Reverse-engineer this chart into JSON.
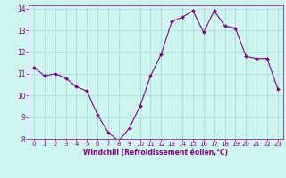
{
  "x": [
    0,
    1,
    2,
    3,
    4,
    5,
    6,
    7,
    8,
    9,
    10,
    11,
    12,
    13,
    14,
    15,
    16,
    17,
    18,
    19,
    20,
    21,
    22,
    23
  ],
  "y": [
    11.3,
    10.9,
    11.0,
    10.8,
    10.4,
    10.2,
    9.1,
    8.3,
    7.9,
    8.5,
    9.5,
    10.9,
    11.9,
    13.4,
    13.6,
    13.9,
    12.9,
    13.9,
    13.2,
    13.1,
    11.8,
    11.7,
    11.7,
    10.3
  ],
  "line_color": "#800080",
  "marker_color": "#800080",
  "bg_color": "#cff5f0",
  "grid_color": "#aaddd8",
  "xlabel": "Windchill (Refroidissement éolien,°C)",
  "xlabel_color": "#800080",
  "tick_color": "#800080",
  "ylim": [
    8,
    14
  ],
  "xlim": [
    -0.5,
    23.5
  ],
  "yticks": [
    8,
    9,
    10,
    11,
    12,
    13,
    14
  ],
  "xticks": [
    0,
    1,
    2,
    3,
    4,
    5,
    6,
    7,
    8,
    9,
    10,
    11,
    12,
    13,
    14,
    15,
    16,
    17,
    18,
    19,
    20,
    21,
    22,
    23
  ],
  "tick_fontsize": 5.0,
  "xlabel_fontsize": 5.5,
  "ytick_fontsize": 5.5
}
